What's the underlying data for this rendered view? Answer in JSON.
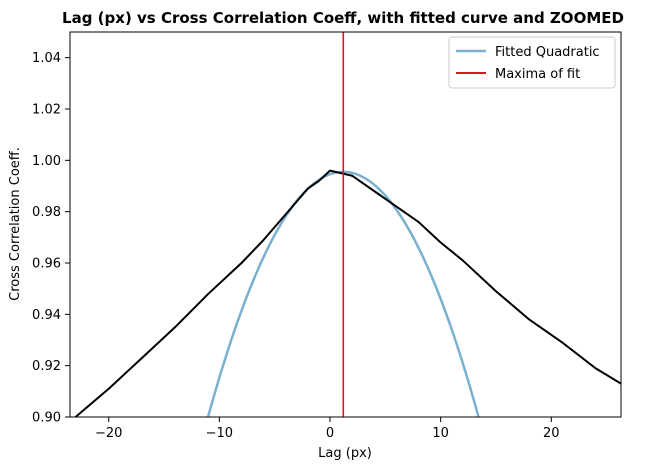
{
  "chart_data": {
    "type": "line",
    "title": "Lag (px) vs Cross Correlation Coeff, with fitted curve and ZOOMED",
    "xlabel": "Lag (px)",
    "ylabel": "Cross Correlation Coeff.",
    "xlim": [
      -23.5,
      26.3
    ],
    "ylim": [
      0.9,
      1.05
    ],
    "xticks": [
      -20,
      -10,
      0,
      10,
      20
    ],
    "xtick_labels": [
      "−20",
      "−10",
      "0",
      "10",
      "20"
    ],
    "yticks": [
      0.9,
      0.92,
      0.94,
      0.96,
      0.98,
      1.0,
      1.02,
      1.04
    ],
    "ytick_labels": [
      "0.90",
      "0.92",
      "0.94",
      "0.96",
      "0.98",
      "1.00",
      "1.02",
      "1.04"
    ],
    "grid": false,
    "legend_position": "top-right",
    "series": [
      {
        "name": "Cross Correlation",
        "color": "#000000",
        "x": [
          -23,
          -20,
          -17,
          -14,
          -11,
          -8,
          -6,
          -4,
          -2,
          -1,
          0,
          1,
          2,
          3,
          4,
          6,
          8,
          10,
          12,
          15,
          18,
          21,
          24,
          26.3
        ],
        "y": [
          0.9,
          0.911,
          0.923,
          0.935,
          0.948,
          0.96,
          0.969,
          0.979,
          0.989,
          0.992,
          0.996,
          0.995,
          0.994,
          0.991,
          0.988,
          0.982,
          0.976,
          0.968,
          0.961,
          0.949,
          0.938,
          0.929,
          0.919,
          0.913
        ]
      },
      {
        "name": "Fitted Quadratic",
        "color": "#7ab0d0",
        "type": "quadratic",
        "vertex_x": 1.2,
        "vertex_y": 0.9955,
        "curvature": 0.000639,
        "x_range": [
          -11.05,
          13.45
        ]
      },
      {
        "name": "Maxima of fit",
        "color": "#e0141e",
        "type": "vline",
        "x": 1.2
      }
    ],
    "legend": [
      {
        "label": "Fitted Quadratic",
        "color": "#7ab0d0"
      },
      {
        "label": "Maxima of fit",
        "color": "#e0141e"
      }
    ]
  }
}
